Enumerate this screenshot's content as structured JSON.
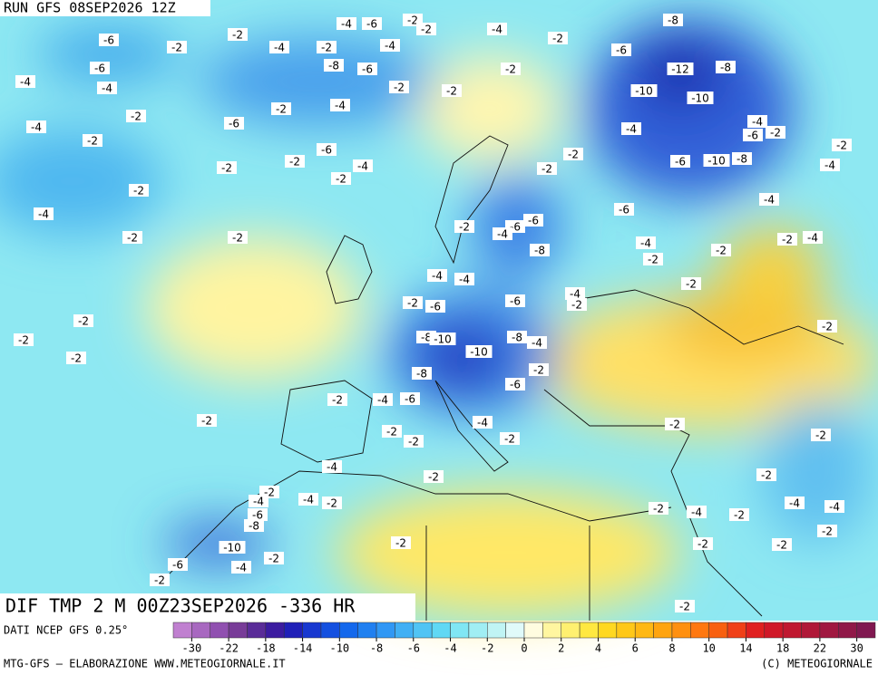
{
  "header": {
    "run": "RUN GFS 08SEP2026 12Z"
  },
  "map": {
    "field_title": "DIF TMP 2 M 00Z23SEP2026 -336 HR",
    "contour_labels": [
      "-6",
      "-2",
      "-2",
      "-4",
      "-2",
      "-8",
      "-6",
      "-4",
      "-4",
      "-6",
      "-2",
      "-2",
      "-4",
      "-6",
      "-4",
      "-4",
      "-2",
      "-2",
      "-4",
      "-6",
      "-2",
      "-4",
      "-2",
      "-2",
      "-2",
      "-2",
      "-6",
      "-8",
      "-12",
      "-10",
      "-10",
      "-8",
      "-4",
      "-4",
      "-6",
      "-2",
      "-10",
      "-8",
      "-6",
      "-4",
      "-2",
      "-4",
      "-6",
      "-4",
      "-2",
      "-2",
      "-2",
      "-4",
      "-2",
      "-2",
      "-2",
      "-2",
      "-6",
      "-4",
      "-2",
      "-2",
      "-2",
      "-2",
      "-4",
      "-2",
      "-2",
      "-2",
      "-6",
      "-4",
      "-6",
      "-8",
      "-4",
      "-4",
      "-2",
      "-6",
      "-6",
      "-4",
      "-2",
      "-8",
      "-10",
      "-10",
      "-8",
      "-4",
      "-8",
      "-2",
      "-6",
      "-2",
      "-4",
      "-6",
      "-2",
      "-4",
      "-2",
      "-2",
      "-2",
      "-2",
      "-2",
      "-4",
      "-2",
      "-2",
      "-2",
      "-4",
      "-2",
      "-4",
      "-6",
      "-8",
      "-2",
      "-4",
      "-2",
      "-4",
      "-4",
      "-2",
      "-2",
      "-10",
      "-2",
      "-6",
      "-4",
      "-2",
      "-2",
      "-2",
      "-2",
      "-2",
      "-2",
      "-2"
    ]
  },
  "legend": {
    "source": "DATI NCEP GFS 0.25°",
    "labels": [
      "-30",
      "-22",
      "-18",
      "-14",
      "-10",
      "-8",
      "-6",
      "-4",
      "-2",
      "0",
      "2",
      "4",
      "6",
      "8",
      "10",
      "14",
      "18",
      "22",
      "30"
    ],
    "colors": [
      "#c080d0",
      "#a868c0",
      "#9050b0",
      "#783c98",
      "#5a2c98",
      "#3c1ca0",
      "#2020b8",
      "#1838d0",
      "#1450e0",
      "#1468ec",
      "#2080f0",
      "#3098f4",
      "#40b0f4",
      "#50c4f4",
      "#60d8f4",
      "#80e6f4",
      "#a0eef4",
      "#c0f4f4",
      "#e0fafa",
      "#fffce0",
      "#fff6a0",
      "#fff070",
      "#ffe840",
      "#ffd820",
      "#ffc818",
      "#ffb814",
      "#ffa410",
      "#ff9010",
      "#ff7810",
      "#f86010",
      "#f04018",
      "#e02020",
      "#d01828",
      "#c01830",
      "#b01838",
      "#a01840",
      "#901848",
      "#801850"
    ]
  },
  "footer": {
    "credit": "MTG-GFS — ELABORAZIONE WWW.METEOGIORNALE.IT",
    "copyright": "(C) METEOGIORNALE"
  }
}
